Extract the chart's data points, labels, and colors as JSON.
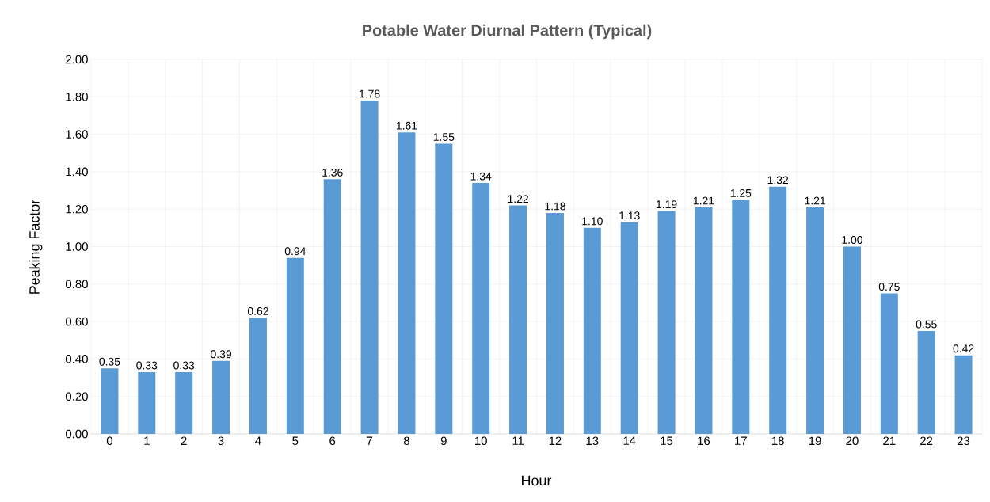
{
  "chart_data": {
    "type": "bar",
    "title": "Potable Water Diurnal Pattern (Typical)",
    "xlabel": "Hour",
    "ylabel": "Peaking Factor",
    "categories": [
      "0",
      "1",
      "2",
      "3",
      "4",
      "5",
      "6",
      "7",
      "8",
      "9",
      "10",
      "11",
      "12",
      "13",
      "14",
      "15",
      "16",
      "17",
      "18",
      "19",
      "20",
      "21",
      "22",
      "23"
    ],
    "values": [
      0.35,
      0.33,
      0.33,
      0.39,
      0.62,
      0.94,
      1.36,
      1.78,
      1.61,
      1.55,
      1.34,
      1.22,
      1.18,
      1.1,
      1.13,
      1.19,
      1.21,
      1.25,
      1.32,
      1.21,
      1.0,
      0.75,
      0.55,
      0.42
    ],
    "value_labels": [
      "0.35",
      "0.33",
      "0.33",
      "0.39",
      "0.62",
      "0.94",
      "1.36",
      "1.78",
      "1.61",
      "1.55",
      "1.34",
      "1.22",
      "1.18",
      "1.10",
      "1.13",
      "1.19",
      "1.21",
      "1.25",
      "1.32",
      "1.21",
      "1.00",
      "0.75",
      "0.55",
      "0.42"
    ],
    "color": "#5b9bd5",
    "ylim": [
      0,
      2
    ],
    "yticks": [
      {
        "value": 0,
        "label": "0.00"
      },
      {
        "value": 0.2,
        "label": "0.20"
      },
      {
        "value": 0.4,
        "label": "0.40"
      },
      {
        "value": 0.6,
        "label": "0.60"
      },
      {
        "value": 0.8,
        "label": "0.80"
      },
      {
        "value": 1.0,
        "label": "1.00"
      },
      {
        "value": 1.2,
        "label": "1.20"
      },
      {
        "value": 1.4,
        "label": "1.40"
      },
      {
        "value": 1.6,
        "label": "1.60"
      },
      {
        "value": 1.8,
        "label": "1.80"
      },
      {
        "value": 2.0,
        "label": "2.00"
      }
    ],
    "grid": true
  }
}
